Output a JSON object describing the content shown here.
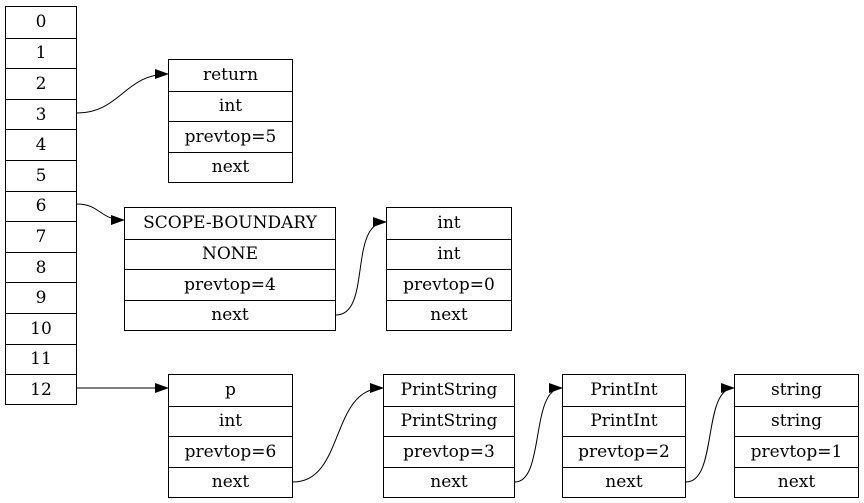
{
  "stack": {
    "slots": [
      "0",
      "1",
      "2",
      "3",
      "4",
      "5",
      "6",
      "7",
      "8",
      "9",
      "10",
      "11",
      "12"
    ]
  },
  "records": {
    "return_rec": {
      "fields": [
        "return",
        "int",
        "prevtop=5",
        "next"
      ]
    },
    "scope_rec": {
      "fields": [
        "SCOPE-BOUNDARY",
        "NONE",
        "prevtop=4",
        "next"
      ]
    },
    "int_rec": {
      "fields": [
        "int",
        "int",
        "prevtop=0",
        "next"
      ]
    },
    "p_rec": {
      "fields": [
        "p",
        "int",
        "prevtop=6",
        "next"
      ]
    },
    "printstring_rec": {
      "fields": [
        "PrintString",
        "PrintString",
        "prevtop=3",
        "next"
      ]
    },
    "printint_rec": {
      "fields": [
        "PrintInt",
        "PrintInt",
        "prevtop=2",
        "next"
      ]
    },
    "string_rec": {
      "fields": [
        "string",
        "string",
        "prevtop=1",
        "next"
      ]
    }
  },
  "links": [
    {
      "from": "stack-slot-3",
      "to": "return_rec"
    },
    {
      "from": "stack-slot-6",
      "to": "scope_rec"
    },
    {
      "from": "stack-slot-12",
      "to": "p_rec"
    },
    {
      "from": "scope_rec.next",
      "to": "int_rec"
    },
    {
      "from": "p_rec.next",
      "to": "printstring_rec"
    },
    {
      "from": "printstring_rec.next",
      "to": "printint_rec"
    },
    {
      "from": "printint_rec.next",
      "to": "string_rec"
    }
  ],
  "colors": {
    "line": "#000000",
    "background": "#ffffff"
  }
}
